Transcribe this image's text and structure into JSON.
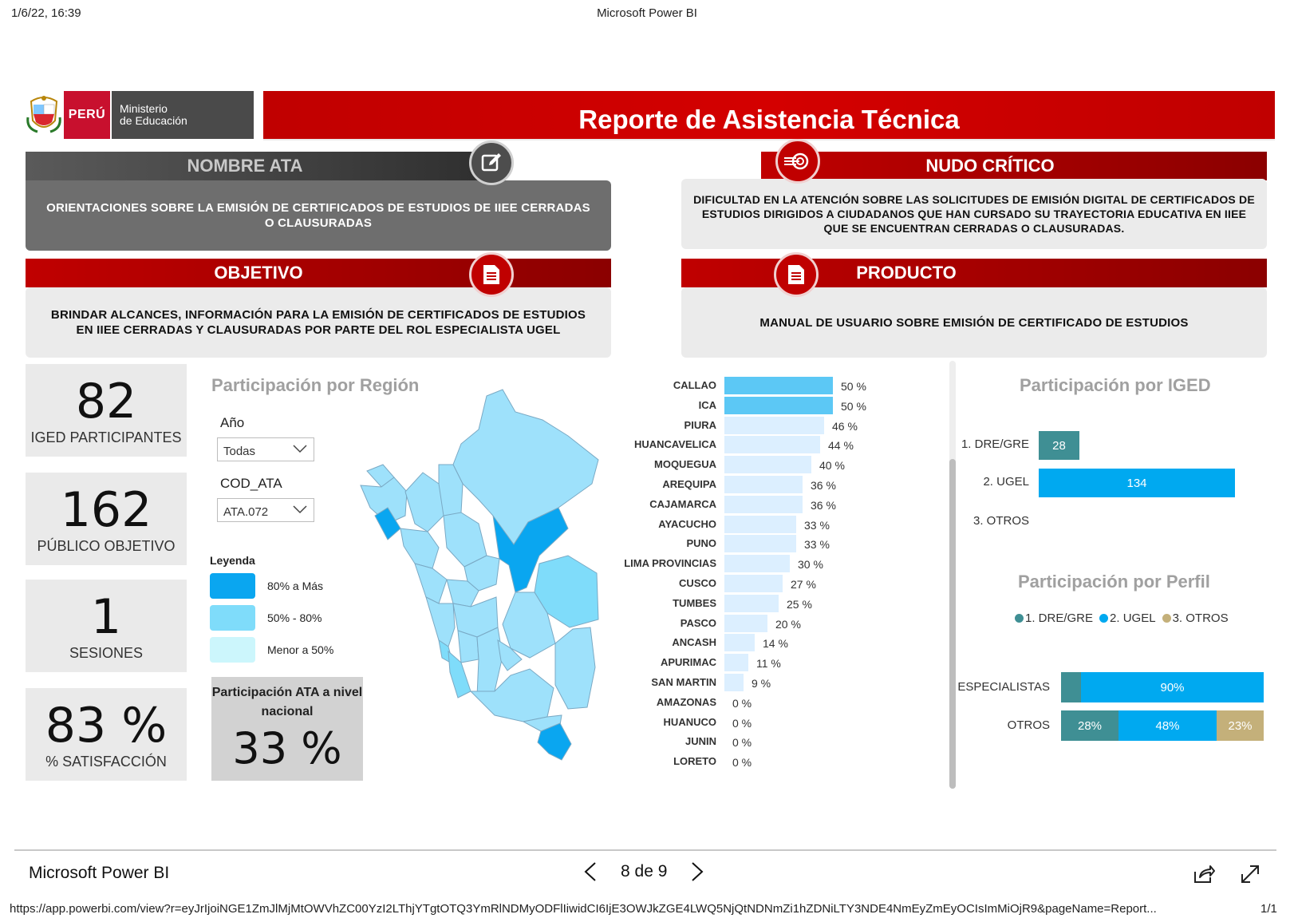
{
  "print": {
    "date": "1/6/22, 16:39",
    "title": "Microsoft Power BI"
  },
  "header": {
    "logo_peru": "PERÚ",
    "logo_ministry_line1": "Ministerio",
    "logo_ministry_line2": "de Educación",
    "report_title": "Reporte de Asistencia Técnica"
  },
  "panels": {
    "nombre_ata": {
      "title": "NOMBRE ATA",
      "text": "ORIENTACIONES SOBRE LA EMISIÓN DE CERTIFICADOS DE ESTUDIOS DE IIEE CERRADAS O CLAUSURADAS",
      "icon": "edit-icon"
    },
    "nudo_critico": {
      "title": "NUDO CRÍTICO",
      "text": "DIFICULTAD EN LA ATENCIÓN SOBRE LAS SOLICITUDES DE EMISIÓN DIGITAL DE CERTIFICADOS DE ESTUDIOS DIRIGIDOS A CIUDADANOS QUE HAN CURSADO SU TRAYECTORIA EDUCATIVA EN IIEE QUE SE ENCUENTRAN CERRADAS O CLAUSURADAS.",
      "icon": "target-icon"
    },
    "objetivo": {
      "title": "OBJETIVO",
      "text": "BRINDAR ALCANCES, INFORMACIÓN PARA LA EMISIÓN DE CERTIFICADOS DE ESTUDIOS EN IIEE CERRADAS Y CLAUSURADAS POR PARTE DEL ROL ESPECIALISTA UGEL",
      "icon": "document-icon"
    },
    "producto": {
      "title": "PRODUCTO",
      "text": "MANUAL DE USUARIO SOBRE EMISIÓN DE CERTIFICADO DE ESTUDIOS",
      "icon": "document-icon"
    }
  },
  "kpis": [
    {
      "value": "82",
      "label": "IGED PARTICIPANTES"
    },
    {
      "value": "162",
      "label": "PÚBLICO OBJETIVO"
    },
    {
      "value": "1",
      "label": "SESIONES"
    },
    {
      "value": "83 %",
      "label": "% SATISFACCIÓN"
    }
  ],
  "region": {
    "title": "Participación por Región",
    "year_label": "Año",
    "year_value": "Todas",
    "ata_label": "COD_ATA",
    "ata_value": "ATA.072",
    "legend_title": "Leyenda",
    "legend": [
      {
        "label": "80% a Más",
        "color": "#0aa6f0"
      },
      {
        "label": "50% - 80%",
        "color": "#7fdcfa"
      },
      {
        "label": "Menor a 50%",
        "color": "#ccf6fc"
      }
    ],
    "national_title": "Participación ATA a nivel nacional",
    "national_value": "33 %"
  },
  "chart_data": [
    {
      "type": "bar",
      "orientation": "horizontal",
      "categories": [
        "CALLAO",
        "ICA",
        "PIURA",
        "HUANCAVELICA",
        "MOQUEGUA",
        "AREQUIPA",
        "CAJAMARCA",
        "AYACUCHO",
        "PUNO",
        "LIMA PROVINCIAS",
        "CUSCO",
        "TUMBES",
        "PASCO",
        "ANCASH",
        "APURIMAC",
        "SAN MARTIN",
        "AMAZONAS",
        "HUANUCO",
        "JUNIN",
        "LORETO"
      ],
      "values": [
        50,
        50,
        46,
        44,
        40,
        36,
        36,
        33,
        33,
        30,
        27,
        25,
        20,
        14,
        11,
        9,
        0,
        0,
        0,
        0
      ],
      "value_labels": [
        "50 %",
        "50 %",
        "46 %",
        "44 %",
        "40 %",
        "36 %",
        "36 %",
        "33 %",
        "33 %",
        "30 %",
        "27 %",
        "25 %",
        "20 %",
        "14 %",
        "11 %",
        "9 %",
        "0 %",
        "0 %",
        "0 %",
        "0 %"
      ],
      "colors": {
        "high": "#5cc8f5",
        "low": "#dcefff"
      },
      "xlim": [
        0,
        50
      ]
    },
    {
      "type": "bar",
      "orientation": "horizontal",
      "title": "Participación por IGED",
      "categories": [
        "1. DRE/GRE",
        "2. UGEL",
        "3. OTROS"
      ],
      "values": [
        28,
        134,
        0
      ],
      "value_labels": [
        "28",
        "134",
        ""
      ],
      "colors": [
        "#3f8f94",
        "#00a9f0",
        "#c4b07a"
      ]
    },
    {
      "type": "bar",
      "orientation": "horizontal",
      "stacked": true,
      "stack_normalized": true,
      "title": "Participación por Perfil",
      "categories": [
        "ESPECIALISTAS",
        "OTROS"
      ],
      "series": [
        {
          "name": "1. DRE/GRE",
          "color": "#3f8f94",
          "values": [
            10,
            28
          ],
          "labels": [
            "",
            "28%"
          ]
        },
        {
          "name": "2. UGEL",
          "color": "#00a9f0",
          "values": [
            90,
            48
          ],
          "labels": [
            "90%",
            "48%"
          ]
        },
        {
          "name": "3. OTROS",
          "color": "#c4b07a",
          "values": [
            0,
            23
          ],
          "labels": [
            "",
            "23%"
          ]
        }
      ],
      "legend": "top"
    }
  ],
  "footer": {
    "app_name": "Microsoft Power BI",
    "page_indicator": "8 de 9",
    "url": "https://app.powerbi.com/view?r=eyJrIjoiNGE1ZmJlMjMtOWVhZC00YzI2LThjYTgtOTQ3YmRlNDMyODFlIiwidCI6IjE3OWJkZGE4LWQ5NjQtNDNmZi1hZDNiLTY3NDE4NmEyZmEyOCIsImMiOjR9&pageName=Report...",
    "print_pages": "1/1"
  }
}
